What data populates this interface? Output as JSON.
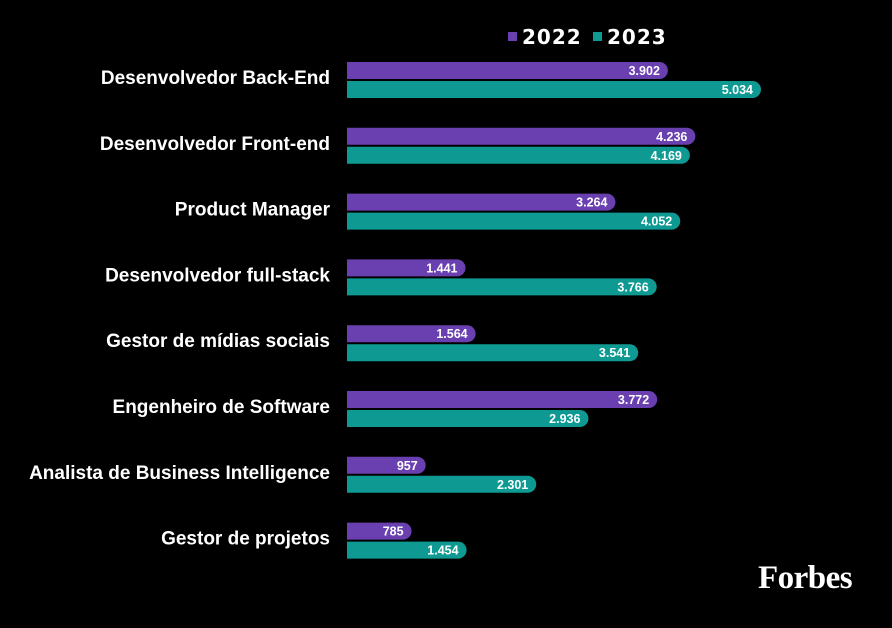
{
  "chart_data": {
    "type": "bar",
    "orientation": "horizontal",
    "categories": [
      "Desenvolvedor Back-End",
      "Desenvolvedor Front-end",
      "Product Manager",
      "Desenvolvedor full-stack",
      "Gestor de mídias sociais",
      "Engenheiro de Software",
      "Analista de Business Intelligence",
      "Gestor de projetos"
    ],
    "series": [
      {
        "name": "2022",
        "color": "#6a3fb0",
        "values": [
          3902,
          4236,
          3264,
          1441,
          1564,
          3772,
          957,
          785
        ],
        "labels": [
          "3.902",
          "4.236",
          "3.264",
          "1.441",
          "1.564",
          "3.772",
          "957",
          "785"
        ]
      },
      {
        "name": "2023",
        "color": "#0e9a93",
        "values": [
          5034,
          4169,
          4052,
          3766,
          3541,
          2936,
          2301,
          1454
        ],
        "labels": [
          "5.034",
          "4.169",
          "4.052",
          "3.766",
          "3.541",
          "2.936",
          "2.301",
          "1.454"
        ]
      }
    ],
    "legend_position": "top-right",
    "grid": false
  },
  "brand": {
    "logo_text": "Forbes"
  }
}
